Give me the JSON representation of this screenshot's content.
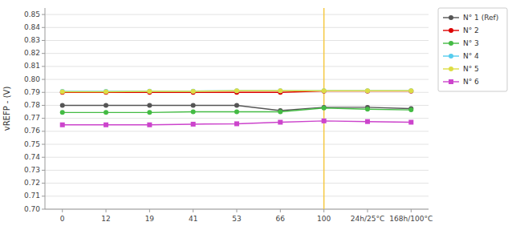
{
  "chart_data": {
    "type": "line",
    "categories": [
      "0",
      "12",
      "19",
      "41",
      "53",
      "66",
      "100",
      "24h/25°C",
      "168h/100°C"
    ],
    "series": [
      {
        "name": "N° 1 (Ref)",
        "color": "#555555",
        "marker": "circle",
        "line_style": "solid",
        "values": [
          0.78,
          0.78,
          0.78,
          0.78,
          0.78,
          0.776,
          0.7785,
          0.7785,
          0.7775
        ]
      },
      {
        "name": "N° 2",
        "color": "#dd0000",
        "marker": "circle",
        "line_style": "solid",
        "values": [
          0.79,
          0.79,
          0.79,
          0.79,
          0.79,
          0.79,
          0.791,
          0.791,
          0.791
        ]
      },
      {
        "name": "N° 3",
        "color": "#44bb44",
        "marker": "circle",
        "line_style": "solid",
        "values": [
          0.7745,
          0.7745,
          0.7745,
          0.775,
          0.775,
          0.775,
          0.778,
          0.777,
          0.7765
        ]
      },
      {
        "name": "N° 4",
        "color": "#55ccee",
        "marker": "circle",
        "line_style": "solid",
        "values": [
          0.7908,
          0.7908,
          0.791,
          0.791,
          0.7913,
          0.7913,
          0.7913,
          0.7913,
          0.7913
        ]
      },
      {
        "name": "N° 5",
        "color": "#dddd44",
        "marker": "circle",
        "line_style": "solid",
        "values": [
          0.7905,
          0.7905,
          0.7908,
          0.7908,
          0.7912,
          0.7912,
          0.7912,
          0.7912,
          0.7912
        ]
      },
      {
        "name": "N° 6",
        "color": "#cc44cc",
        "marker": "square",
        "line_style": "solid",
        "values": [
          0.765,
          0.765,
          0.765,
          0.7655,
          0.7658,
          0.767,
          0.768,
          0.7675,
          0.767
        ]
      }
    ],
    "y_label": "vREFP - (V)",
    "ylim": [
      0.7,
      0.855
    ],
    "yticks": [
      {
        "value": 0.7,
        "label": "0.70"
      },
      0.71,
      0.72,
      0.73,
      0.74,
      0.75,
      0.76,
      0.77,
      0.78,
      0.79,
      {
        "value": 0.8,
        "label": "0.80"
      },
      0.81,
      0.82,
      0.83,
      0.84,
      0.85
    ],
    "reference_lines": [
      {
        "x": "100",
        "color": "#f5c842"
      }
    ],
    "grid": true,
    "legend": "right"
  }
}
